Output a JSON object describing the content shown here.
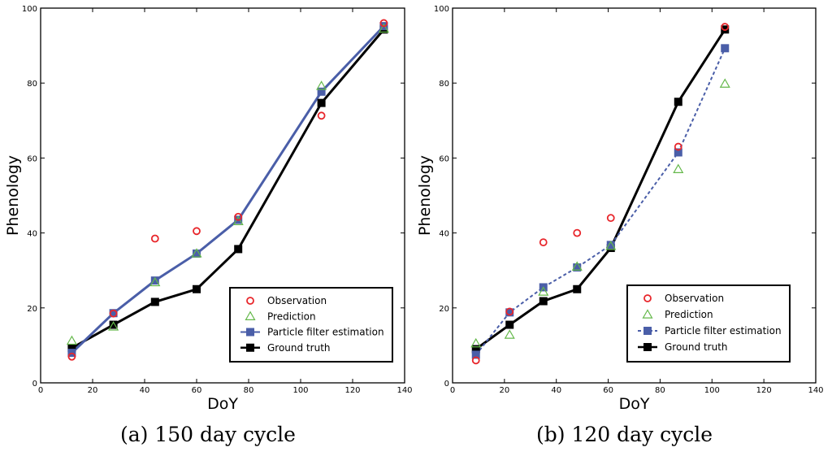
{
  "colors": {
    "observation": "#e8262b",
    "prediction": "#64b84a",
    "particle": "#4a5ea8",
    "ground_truth": "#000000"
  },
  "legend_labels": {
    "observation": "Observation",
    "prediction": "Prediction",
    "particle": "Particle filter estimation",
    "ground_truth": "Ground truth"
  },
  "chart_data": [
    {
      "id": "a",
      "type": "line",
      "caption": "(a)  150 day cycle",
      "xlabel": "DoY",
      "ylabel": "Phenology",
      "xlim": [
        0,
        140
      ],
      "ylim": [
        0,
        100
      ],
      "xticks": [
        "0",
        "20",
        "40",
        "60",
        "80",
        "100",
        "120",
        "140"
      ],
      "yticks": [
        "0",
        "20",
        "40",
        "60",
        "80",
        "100"
      ],
      "legend_position": "bottom-right",
      "particle_line_style": "solid",
      "series": [
        {
          "name": "Observation",
          "key": "observation",
          "x": [
            12,
            28,
            44,
            60,
            76,
            108,
            132
          ],
          "y": [
            7,
            18.5,
            38.5,
            40.5,
            44.3,
            71.3,
            96
          ]
        },
        {
          "name": "Prediction",
          "key": "prediction",
          "x": [
            12,
            28,
            44,
            60,
            76,
            108,
            132
          ],
          "y": [
            11.2,
            15,
            26.8,
            34.5,
            43.1,
            79.2,
            94.5
          ]
        },
        {
          "name": "Particle filter estimation",
          "key": "particle",
          "x": [
            12,
            28,
            44,
            60,
            76,
            108,
            132
          ],
          "y": [
            8,
            18.6,
            27.3,
            34.5,
            43.5,
            77.7,
            95.2
          ]
        },
        {
          "name": "Ground truth",
          "key": "ground_truth",
          "x": [
            12,
            28,
            44,
            60,
            76,
            108,
            132
          ],
          "y": [
            9.3,
            15.5,
            21.6,
            25,
            35.7,
            74.7,
            94.3
          ]
        }
      ]
    },
    {
      "id": "b",
      "type": "line",
      "caption": "(b)  120 day cycle",
      "xlabel": "DoY",
      "ylabel": "Phenology",
      "xlim": [
        0,
        140
      ],
      "ylim": [
        0,
        100
      ],
      "xticks": [
        "0",
        "20",
        "40",
        "60",
        "80",
        "100",
        "120",
        "140"
      ],
      "yticks": [
        "0",
        "20",
        "40",
        "60",
        "80",
        "100"
      ],
      "legend_position": "bottom-right",
      "particle_line_style": "dashed",
      "series": [
        {
          "name": "Observation",
          "key": "observation",
          "x": [
            9,
            22,
            35,
            48,
            61,
            87,
            105
          ],
          "y": [
            6,
            19,
            37.5,
            40,
            44,
            63,
            95
          ]
        },
        {
          "name": "Prediction",
          "key": "prediction",
          "x": [
            9,
            22,
            35,
            48,
            61,
            87,
            105
          ],
          "y": [
            10.5,
            12.8,
            24.3,
            31,
            36.5,
            57,
            79.8
          ]
        },
        {
          "name": "Particle filter estimation",
          "key": "particle",
          "x": [
            9,
            22,
            35,
            48,
            61,
            87,
            105
          ],
          "y": [
            7.5,
            18.8,
            25.5,
            30.8,
            36.8,
            61.5,
            89.3
          ]
        },
        {
          "name": "Ground truth",
          "key": "ground_truth",
          "x": [
            9,
            22,
            35,
            48,
            61,
            87,
            105
          ],
          "y": [
            9,
            15.5,
            21.8,
            25,
            36,
            75,
            94.3
          ]
        }
      ]
    }
  ]
}
